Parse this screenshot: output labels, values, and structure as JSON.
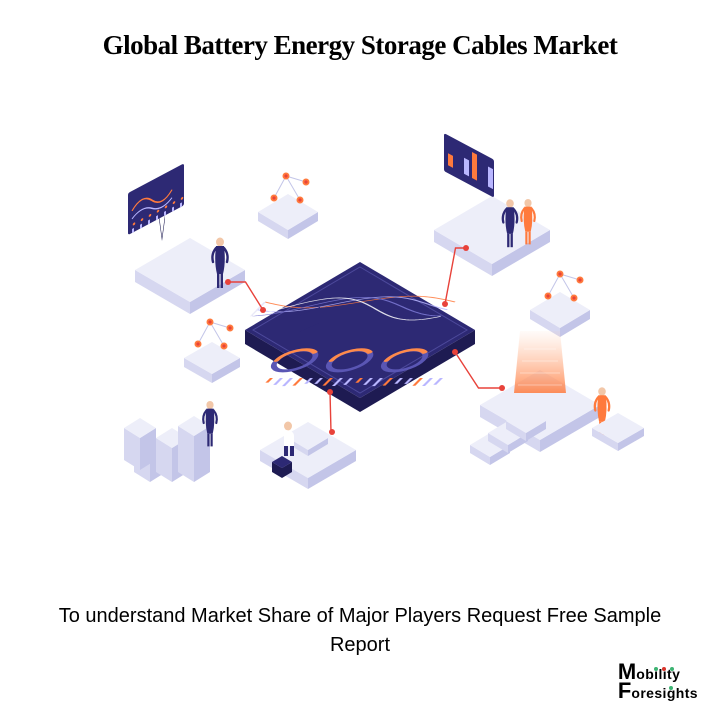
{
  "title": {
    "text": "Global Battery Energy Storage Cables Market",
    "fontsize": 27,
    "weight": 700,
    "color": "#000000"
  },
  "caption": {
    "text": "To understand Market Share of Major Players  Request Free Sample Report",
    "fontsize": 20,
    "color": "#000000"
  },
  "logo": {
    "line1_prefix": "M",
    "line1_rest": "obility",
    "line2_prefix": "F",
    "line2_rest": "oresights",
    "color_text": "#000000",
    "dot_color_1": "#3cb371",
    "dot_color_2": "#d9342b",
    "prefix_fontsize": 22,
    "rest_fontsize": 14
  },
  "illustration": {
    "type": "infographic",
    "style": "isometric",
    "background_color": "#ffffff",
    "platform_fill": "#edeef9",
    "platform_edge": "#d6d7f0",
    "platform_edge_dark": "#c3c5e8",
    "dashboard_fill": "#2d2974",
    "dashboard_edge": "#1e1b52",
    "accent_orange": "#ff7a3d",
    "accent_orange_light": "#ffb389",
    "accent_red": "#e8423a",
    "accent_line_light": "#b9b6ff",
    "accent_line_mid": "#7e7ad6",
    "gauge_ring": "#5a56b4",
    "gauge_accent": "#ff8a4a",
    "connection_line": "#e8423a",
    "node_dot_outer": "#ff7a3d",
    "node_dot_inner": "#e8423a",
    "person_body": "#2d2974",
    "person_skin": "#f2c7a8",
    "person_accent": "#ff7a3d",
    "bar_chart_colors": [
      "#ff7a3d",
      "#2d2974",
      "#b9b6ff"
    ],
    "connections": [
      {
        "from": "platform_tl",
        "to": "dashboard"
      },
      {
        "from": "platform_tr",
        "to": "dashboard"
      },
      {
        "from": "platform_bl",
        "to": "dashboard"
      },
      {
        "from": "platform_br",
        "to": "dashboard"
      }
    ]
  }
}
